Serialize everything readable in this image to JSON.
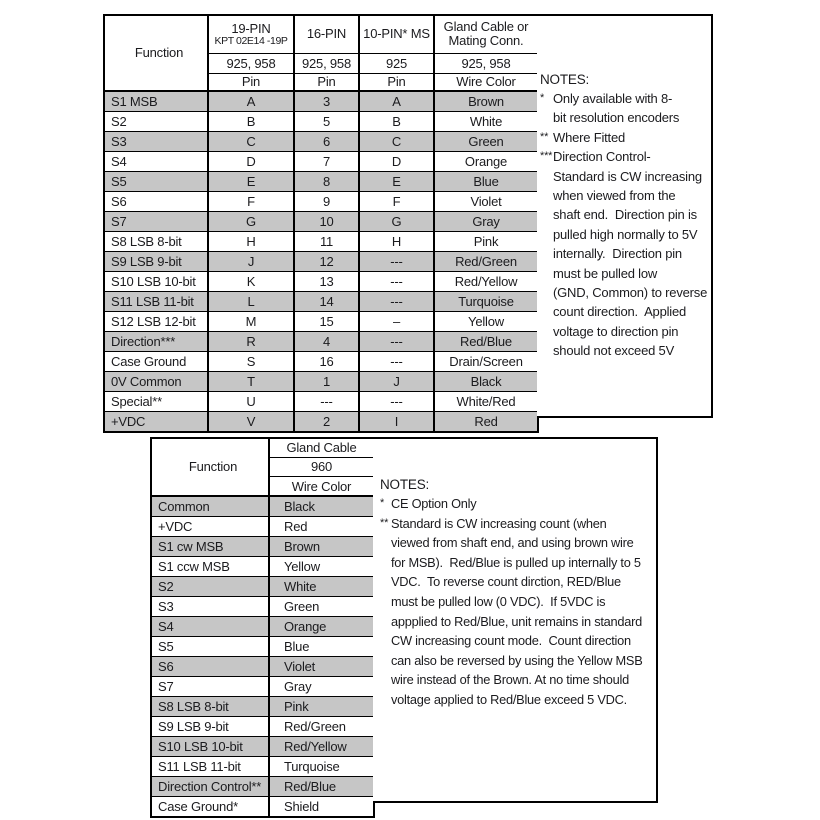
{
  "colors": {
    "row_shaded": "#c6c6c6",
    "row_plain": "#ffffff",
    "border": "#000000",
    "text": "#1b1b1e"
  },
  "table1": {
    "function_label": "Function",
    "columns": [
      {
        "title_line1": "19-PIN",
        "title_line2": "KPT 02E14 -19P",
        "series": "925, 958",
        "unit": "Pin"
      },
      {
        "title_line1": "16-PIN",
        "title_line2": "",
        "series": "925, 958",
        "unit": "Pin"
      },
      {
        "title_line1": "10-PIN* MS",
        "title_line2": "",
        "series": "925",
        "unit": "Pin"
      },
      {
        "title_line1": "Gland Cable or",
        "title_line2": "Mating Conn.",
        "series": "925, 958",
        "unit": "Wire Color"
      }
    ],
    "rows": [
      [
        "S1 MSB",
        "A",
        "3",
        "A",
        "Brown"
      ],
      [
        "S2",
        "B",
        "5",
        "B",
        "White"
      ],
      [
        "S3",
        "C",
        "6",
        "C",
        "Green"
      ],
      [
        "S4",
        "D",
        "7",
        "D",
        "Orange"
      ],
      [
        "S5",
        "E",
        "8",
        "E",
        "Blue"
      ],
      [
        "S6",
        "F",
        "9",
        "F",
        "Violet"
      ],
      [
        "S7",
        "G",
        "10",
        "G",
        "Gray"
      ],
      [
        "S8 LSB 8-bit",
        "H",
        "11",
        "H",
        "Pink"
      ],
      [
        "S9 LSB 9-bit",
        "J",
        "12",
        "---",
        "Red/Green"
      ],
      [
        "S10 LSB 10-bit",
        "K",
        "13",
        "---",
        "Red/Yellow"
      ],
      [
        "S11 LSB 11-bit",
        "L",
        "14",
        "---",
        "Turquoise"
      ],
      [
        "S12 LSB 12-bit",
        "M",
        "15",
        "–",
        "Yellow"
      ],
      [
        "Direction***",
        "R",
        "4",
        "---",
        "Red/Blue"
      ],
      [
        "Case Ground",
        "S",
        "16",
        "---",
        "Drain/Screen"
      ],
      [
        "0V Common",
        "T",
        "1",
        "J",
        "Black"
      ],
      [
        "Special**",
        "U",
        "---",
        "---",
        "White/Red"
      ],
      [
        "+VDC",
        "V",
        "2",
        "I",
        "Red"
      ]
    ]
  },
  "notes1": {
    "title": "NOTES:",
    "items": [
      {
        "marker": "*",
        "text": "Only available with 8-\nbit resolution encoders"
      },
      {
        "marker": "**",
        "text": "Where Fitted"
      },
      {
        "marker": "***",
        "text": "Direction Control-\nStandard is CW increasing\nwhen viewed from the\nshaft end.  Direction pin is\npulled high normally to 5V\ninternally.  Direction pin\nmust be pulled low\n(GND, Common) to reverse\ncount direction.  Applied\nvoltage to direction pin\nshould not exceed 5V"
      }
    ]
  },
  "table2": {
    "function_label": "Function",
    "header": {
      "title": "Gland Cable",
      "series": "960",
      "unit": "Wire Color"
    },
    "rows": [
      [
        "Common",
        "Black"
      ],
      [
        "+VDC",
        "Red"
      ],
      [
        "S1 cw MSB",
        "Brown"
      ],
      [
        "S1 ccw MSB",
        "Yellow"
      ],
      [
        "S2",
        "White"
      ],
      [
        "S3",
        "Green"
      ],
      [
        "S4",
        "Orange"
      ],
      [
        "S5",
        "Blue"
      ],
      [
        "S6",
        "Violet"
      ],
      [
        "S7",
        "Gray"
      ],
      [
        "S8 LSB 8-bit",
        "Pink"
      ],
      [
        "S9 LSB 9-bit",
        "Red/Green"
      ],
      [
        "S10 LSB 10-bit",
        "Red/Yellow"
      ],
      [
        "S11 LSB 11-bit",
        "Turquoise"
      ],
      [
        "Direction Control**",
        "Red/Blue"
      ],
      [
        "Case Ground*",
        "Shield"
      ]
    ]
  },
  "notes2": {
    "title": "NOTES:",
    "items": [
      {
        "marker": "*",
        "text": "CE Option Only"
      },
      {
        "marker": "**",
        "text": "Standard is CW increasing count (when\nviewed from shaft end, and using brown wire\nfor MSB).  Red/Blue is pulled up internally to 5\nVDC.  To reverse count dirction, RED/Blue\nmust be pulled low (0 VDC).  If 5VDC is\nappplied to Red/Blue, unit remains in standard\nCW increasing count mode.  Count direction\ncan also be reversed by using the Yellow MSB\nwire instead of the Brown. At no time should\nvoltage applied to Red/Blue exceed 5 VDC."
      }
    ]
  }
}
